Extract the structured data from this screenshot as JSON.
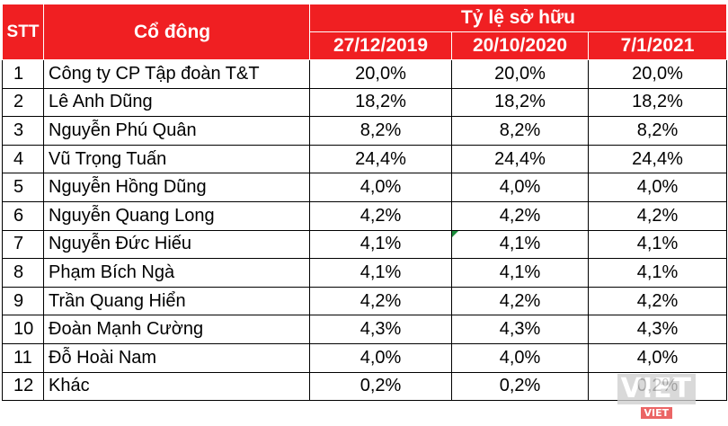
{
  "table": {
    "header": {
      "stt": "STT",
      "holder": "Cổ đông",
      "ownership": "Tỷ lệ sở hữu",
      "dates": [
        "27/12/2019",
        "20/10/2020",
        "7/1/2021"
      ]
    },
    "rows": [
      {
        "stt": "1",
        "name": "Công ty CP Tập đoàn T&T",
        "values": [
          "20,0%",
          "20,0%",
          "20,0%"
        ]
      },
      {
        "stt": "2",
        "name": "Lê Anh Dũng",
        "values": [
          "18,2%",
          "18,2%",
          "18,2%"
        ]
      },
      {
        "stt": "3",
        "name": "Nguyễn Phú Quân",
        "values": [
          "8,2%",
          "8,2%",
          "8,2%"
        ]
      },
      {
        "stt": "4",
        "name": "Vũ Trọng Tuấn",
        "values": [
          "24,4%",
          "24,4%",
          "24,4%"
        ]
      },
      {
        "stt": "5",
        "name": "Nguyễn Hồng Dũng",
        "values": [
          "4,0%",
          "4,0%",
          "4,0%"
        ]
      },
      {
        "stt": "6",
        "name": "Nguyễn Quang Long",
        "values": [
          "4,2%",
          "4,2%",
          "4,2%"
        ]
      },
      {
        "stt": "7",
        "name": "Nguyễn Đức Hiếu",
        "values": [
          "4,1%",
          "4,1%",
          "4,1%"
        ]
      },
      {
        "stt": "8",
        "name": "Phạm Bích Ngà",
        "values": [
          "4,1%",
          "4,1%",
          "4,1%"
        ]
      },
      {
        "stt": "9",
        "name": "Trần Quang Hiển",
        "values": [
          "4,2%",
          "4,2%",
          "4,2%"
        ]
      },
      {
        "stt": "10",
        "name": "Đoàn Mạnh Cường",
        "values": [
          "4,3%",
          "4,3%",
          "4,3%"
        ]
      },
      {
        "stt": "11",
        "name": "Đỗ Hoài Nam",
        "values": [
          "4,0%",
          "4,0%",
          "4,0%"
        ]
      },
      {
        "stt": "12",
        "name": "Khác",
        "values": [
          "0,2%",
          "0,2%",
          "0,2%"
        ]
      }
    ]
  },
  "watermark": {
    "main": "VIET",
    "sub": "VIET"
  },
  "colors": {
    "header_bg": "#f01f22",
    "header_text": "#ffffff",
    "grid": "#000000"
  }
}
